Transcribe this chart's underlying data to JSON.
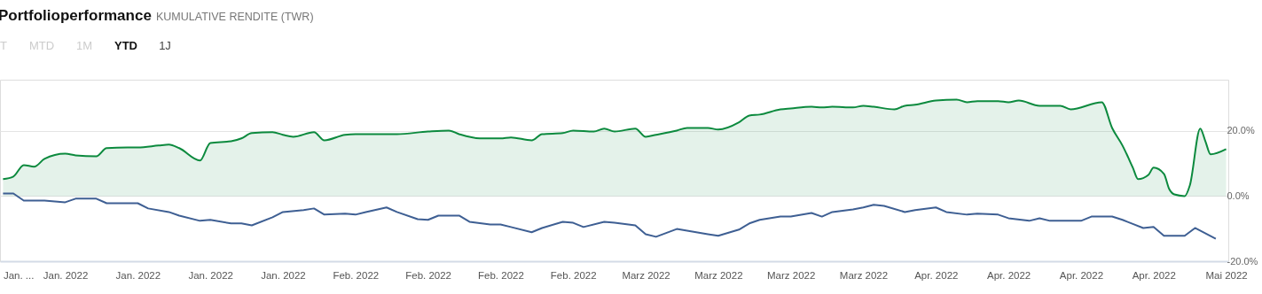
{
  "chart_data": {
    "type": "line",
    "title": "Portfolioperformance",
    "subtitle": "KUMULATIVE RENDITE (TWR)",
    "annotations": [
      "T",
      "MTD",
      "1M",
      "YTD",
      "1J"
    ],
    "xlim": [
      "2022-01-02T17:00",
      "2022-05-01T05:00"
    ],
    "xticks": [
      {
        "value": "2022-01-03",
        "label": "Jan. ..."
      },
      {
        "value": "2022-01-09",
        "label": "Jan. 2022"
      },
      {
        "value": "2022-01-16",
        "label": "Jan. 2022"
      },
      {
        "value": "2022-01-23",
        "label": "Jan. 2022"
      },
      {
        "value": "2022-01-30",
        "label": "Jan. 2022"
      },
      {
        "value": "2022-02-06",
        "label": "Feb. 2022"
      },
      {
        "value": "2022-02-13",
        "label": "Feb. 2022"
      },
      {
        "value": "2022-02-20",
        "label": "Feb. 2022"
      },
      {
        "value": "2022-02-27",
        "label": "Feb. 2022"
      },
      {
        "value": "2022-03-06",
        "label": "Marz 2022"
      },
      {
        "value": "2022-03-13",
        "label": "Marz 2022"
      },
      {
        "value": "2022-03-20",
        "label": "Marz 2022"
      },
      {
        "value": "2022-03-27",
        "label": "Marz 2022"
      },
      {
        "value": "2022-04-03",
        "label": "Apr. 2022"
      },
      {
        "value": "2022-04-10",
        "label": "Apr. 2022"
      },
      {
        "value": "2022-04-17",
        "label": "Apr. 2022"
      },
      {
        "value": "2022-04-24",
        "label": "Apr. 2022"
      },
      {
        "value": "2022-05-01",
        "label": "Mai 2022"
      }
    ],
    "ylim": [
      -20,
      35.7
    ],
    "yticks": [
      {
        "value": -20,
        "label": "-20.0%"
      },
      {
        "value": 0,
        "label": "0.0%"
      },
      {
        "value": 20,
        "label": "20.0%"
      }
    ],
    "grid": "y",
    "series": [
      {
        "type": "area",
        "color": "#0c8a3e",
        "x": [
          "2022-01-03",
          "2022-01-04",
          "2022-01-05",
          "2022-01-06",
          "2022-01-07",
          "2022-01-09",
          "2022-01-10",
          "2022-01-12",
          "2022-01-13",
          "2022-01-15",
          "2022-01-16",
          "2022-01-18",
          "2022-01-19",
          "2022-01-20",
          "2022-01-22",
          "2022-01-23",
          "2022-01-25",
          "2022-01-26",
          "2022-01-27",
          "2022-01-29",
          "2022-01-30",
          "2022-01-31",
          "2022-02-02",
          "2022-02-03",
          "2022-02-05",
          "2022-02-06",
          "2022-02-08",
          "2022-02-10",
          "2022-02-13",
          "2022-02-15",
          "2022-02-16",
          "2022-02-18",
          "2022-02-20",
          "2022-02-21",
          "2022-02-23",
          "2022-02-24",
          "2022-02-26",
          "2022-02-27",
          "2022-03-01",
          "2022-03-02",
          "2022-03-03",
          "2022-03-05",
          "2022-03-06",
          "2022-03-07",
          "2022-03-09",
          "2022-03-10",
          "2022-03-12",
          "2022-03-13",
          "2022-03-15",
          "2022-03-16",
          "2022-03-17",
          "2022-03-19",
          "2022-03-20",
          "2022-03-22",
          "2022-03-23",
          "2022-03-24",
          "2022-03-26",
          "2022-03-27",
          "2022-03-28",
          "2022-03-30",
          "2022-03-31",
          "2022-04-01",
          "2022-04-03",
          "2022-04-05",
          "2022-04-06",
          "2022-04-07",
          "2022-04-09",
          "2022-04-10",
          "2022-04-11",
          "2022-04-13",
          "2022-04-15",
          "2022-04-16",
          "2022-04-19",
          "2022-04-20",
          "2022-04-21",
          "2022-04-22",
          "2022-04-22T12:00",
          "2022-04-23T12:00",
          "2022-04-24",
          "2022-04-25",
          "2022-04-25T12:00",
          "2022-04-26",
          "2022-04-27",
          "2022-04-27T12:00",
          "2022-04-28T12:00",
          "2022-04-29",
          "2022-04-29T12:00",
          "2022-05-01"
        ],
        "values": [
          5.2,
          6.0,
          9.5,
          9.0,
          11.4,
          13.0,
          12.5,
          12.2,
          14.7,
          14.9,
          14.9,
          15.5,
          15.8,
          14.7,
          10.9,
          16.3,
          16.8,
          17.7,
          19.3,
          19.6,
          18.8,
          18.2,
          19.6,
          17.1,
          18.8,
          19.0,
          19.0,
          19.0,
          19.8,
          20.1,
          19.0,
          17.7,
          17.7,
          18.0,
          17.1,
          19.0,
          19.3,
          20.1,
          19.8,
          20.7,
          19.8,
          20.7,
          18.2,
          18.8,
          20.1,
          20.9,
          20.9,
          20.4,
          22.6,
          24.7,
          25.0,
          26.6,
          26.9,
          27.4,
          27.2,
          27.4,
          27.2,
          27.7,
          27.4,
          26.6,
          27.7,
          28.0,
          29.3,
          29.6,
          28.8,
          29.1,
          29.1,
          28.8,
          29.3,
          27.7,
          27.7,
          26.6,
          28.8,
          20.9,
          15.5,
          8.7,
          5.2,
          6.5,
          8.7,
          6.8,
          2.2,
          0.5,
          0.0,
          3.3,
          20.7,
          16.8,
          12.8,
          14.4
        ]
      },
      {
        "type": "line",
        "color": "#3e5f93",
        "x": [
          "2022-01-03",
          "2022-01-04",
          "2022-01-05",
          "2022-01-07",
          "2022-01-09",
          "2022-01-10",
          "2022-01-12",
          "2022-01-13",
          "2022-01-16",
          "2022-01-17",
          "2022-01-19",
          "2022-01-20",
          "2022-01-22",
          "2022-01-23",
          "2022-01-25",
          "2022-01-26",
          "2022-01-27",
          "2022-01-29",
          "2022-01-30",
          "2022-02-01",
          "2022-02-02",
          "2022-02-03",
          "2022-02-05",
          "2022-02-06",
          "2022-02-07",
          "2022-02-09",
          "2022-02-10",
          "2022-02-12",
          "2022-02-13",
          "2022-02-14",
          "2022-02-16",
          "2022-02-17",
          "2022-02-19",
          "2022-02-20",
          "2022-02-21",
          "2022-02-23",
          "2022-02-24",
          "2022-02-26",
          "2022-02-27",
          "2022-02-28",
          "2022-03-02",
          "2022-03-03",
          "2022-03-05",
          "2022-03-06",
          "2022-03-07",
          "2022-03-09",
          "2022-03-10",
          "2022-03-12",
          "2022-03-13",
          "2022-03-15",
          "2022-03-16",
          "2022-03-17",
          "2022-03-19",
          "2022-03-20",
          "2022-03-22",
          "2022-03-23",
          "2022-03-24",
          "2022-03-26",
          "2022-03-27",
          "2022-03-28",
          "2022-03-29",
          "2022-03-31",
          "2022-04-01",
          "2022-04-03",
          "2022-04-04",
          "2022-04-06",
          "2022-04-07",
          "2022-04-09",
          "2022-04-10",
          "2022-04-12",
          "2022-04-13",
          "2022-04-14",
          "2022-04-16",
          "2022-04-17",
          "2022-04-18",
          "2022-04-20",
          "2022-04-21",
          "2022-04-23",
          "2022-04-24",
          "2022-04-25",
          "2022-04-27",
          "2022-04-28",
          "2022-04-30"
        ],
        "values": [
          0.8,
          0.8,
          -1.4,
          -1.4,
          -1.9,
          -0.8,
          -0.8,
          -2.2,
          -2.2,
          -3.8,
          -4.9,
          -6.0,
          -7.6,
          -7.3,
          -8.4,
          -8.4,
          -9.0,
          -6.5,
          -4.9,
          -4.3,
          -3.8,
          -5.7,
          -5.4,
          -5.7,
          -4.9,
          -3.5,
          -4.9,
          -7.1,
          -7.3,
          -6.0,
          -6.0,
          -7.9,
          -8.7,
          -8.7,
          -9.5,
          -11.1,
          -9.8,
          -7.9,
          -8.2,
          -9.5,
          -7.9,
          -8.2,
          -9.0,
          -11.7,
          -12.5,
          -10.1,
          -10.6,
          -11.7,
          -12.2,
          -10.3,
          -8.4,
          -7.3,
          -6.3,
          -6.3,
          -5.2,
          -6.3,
          -4.9,
          -4.1,
          -3.5,
          -2.7,
          -3.0,
          -4.9,
          -4.3,
          -3.5,
          -4.9,
          -5.7,
          -5.4,
          -5.7,
          -6.8,
          -7.6,
          -6.8,
          -7.6,
          -7.6,
          -7.6,
          -6.3,
          -6.3,
          -7.3,
          -9.8,
          -9.5,
          -12.2,
          -12.2,
          -9.8,
          -13.1
        ]
      }
    ]
  }
}
